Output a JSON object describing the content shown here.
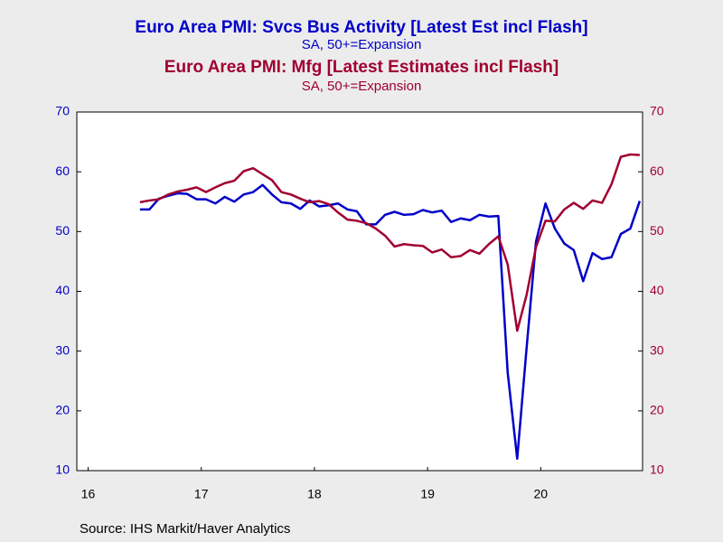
{
  "chart_data": {
    "type": "line",
    "source": "Source:  IHS Markit/Haver Analytics",
    "x": [
      2016.958,
      2017.042,
      2017.125,
      2017.208,
      2017.292,
      2017.375,
      2017.458,
      2017.542,
      2017.625,
      2017.708,
      2017.792,
      2017.875,
      2017.958,
      2018.042,
      2018.125,
      2018.208,
      2018.292,
      2018.375,
      2018.458,
      2018.542,
      2018.625,
      2018.708,
      2018.792,
      2018.875,
      2018.958,
      2019.042,
      2019.125,
      2019.208,
      2019.292,
      2019.375,
      2019.458,
      2019.542,
      2019.625,
      2019.708,
      2019.792,
      2019.875,
      2019.958,
      2020.042,
      2020.125,
      2020.208,
      2020.292,
      2020.375,
      2020.458,
      2020.542,
      2020.625,
      2020.708,
      2020.792,
      2020.875,
      2020.958,
      2021.042,
      2021.125,
      2021.208,
      2021.292,
      2021.375
    ],
    "series": [
      {
        "name": "Euro Area PMI: Svcs Bus Activity [Latest Est incl Flash]",
        "subtitle": "SA, 50+=Expansion",
        "color": "#0000c8",
        "values": [
          53.7,
          53.7,
          55.5,
          56.0,
          56.4,
          56.3,
          55.4,
          55.4,
          54.7,
          55.8,
          55.0,
          56.2,
          56.6,
          57.8,
          56.2,
          54.9,
          54.7,
          53.8,
          55.2,
          54.2,
          54.4,
          54.7,
          53.7,
          53.4,
          51.2,
          51.2,
          52.8,
          53.3,
          52.8,
          52.9,
          53.6,
          53.2,
          53.5,
          51.6,
          52.2,
          51.9,
          52.8,
          52.5,
          52.6,
          26.4,
          12.0,
          30.5,
          48.3,
          54.7,
          50.5,
          48.0,
          46.9,
          41.7,
          46.4,
          45.4,
          45.7,
          49.6,
          50.5,
          55.1
        ]
      },
      {
        "name": "Euro Area PMI: Mfg [Latest Estimates incl Flash]",
        "subtitle": "SA, 50+=Expansion",
        "color": "#a00030",
        "axis": "y2",
        "values": [
          54.9,
          55.2,
          55.4,
          56.2,
          56.7,
          57.0,
          57.4,
          56.6,
          57.4,
          58.1,
          58.5,
          60.1,
          60.6,
          59.6,
          58.6,
          56.6,
          56.2,
          55.5,
          54.9,
          55.1,
          54.6,
          53.2,
          52.0,
          51.8,
          51.4,
          50.5,
          49.3,
          47.5,
          47.9,
          47.7,
          47.6,
          46.5,
          47.0,
          45.7,
          45.9,
          46.9,
          46.3,
          47.9,
          49.2,
          44.5,
          33.4,
          39.4,
          47.4,
          51.8,
          51.7,
          53.7,
          54.8,
          53.8,
          55.2,
          54.8,
          57.9,
          62.5,
          62.9,
          62.8
        ]
      }
    ],
    "xlim": [
      2016.4,
      2021.4
    ],
    "xticks": [
      {
        "value": 2016.5,
        "label": "16"
      },
      {
        "value": 2017.5,
        "label": "17"
      },
      {
        "value": 2018.5,
        "label": "18"
      },
      {
        "value": 2019.5,
        "label": "19"
      },
      {
        "value": 2020.5,
        "label": "20"
      }
    ],
    "ylim": [
      10,
      70
    ],
    "yticks": [
      10,
      20,
      30,
      40,
      50,
      60,
      70
    ],
    "y2lim": [
      10,
      70
    ],
    "y2ticks": [
      10,
      20,
      30,
      40,
      50,
      60,
      70
    ]
  }
}
